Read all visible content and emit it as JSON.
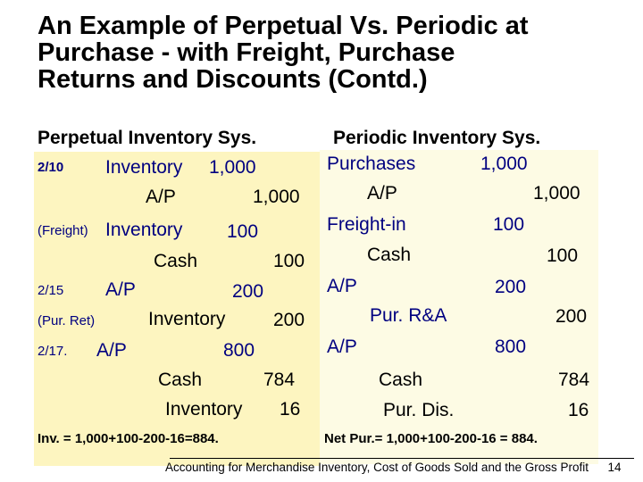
{
  "title": {
    "line1": "An Example of Perpetual Vs. Periodic at",
    "line2": "Purchase - with Freight, Purchase",
    "line3": "Returns and Discounts (Contd.)"
  },
  "perpetual": {
    "header": "Perpetual Inventory Sys.",
    "r1_date": "2/10",
    "r1_acct": "Inventory",
    "r1_amt": "1,000",
    "r2_acct": "A/P",
    "r2_amt": "1,000",
    "r3_note": "(Freight)",
    "r3_acct": "Inventory",
    "r3_amt": "100",
    "r4_acct": "Cash",
    "r4_amt": "100",
    "r5_date": "2/15",
    "r5_acct": "A/P",
    "r5_amt": "200",
    "r6_note": "(Pur. Ret)",
    "r6_acct": "Inventory",
    "r6_amt": "200",
    "r7_date": "2/17.",
    "r7_acct": "A/P",
    "r7_amt": "800",
    "r8_acct": "Cash",
    "r8_amt": "784",
    "r9_acct": "Inventory",
    "r9_amt": "16",
    "summary": "Inv. = 1,000+100-200-16=884."
  },
  "periodic": {
    "header": "Periodic Inventory Sys.",
    "r1_acct": "Purchases",
    "r1_amt": "1,000",
    "r2_acct": "A/P",
    "r2_amt": "1,000",
    "r3_acct": "Freight-in",
    "r3_amt": "100",
    "r4_acct": "Cash",
    "r4_amt": "100",
    "r5_acct": "A/P",
    "r5_amt": "200",
    "r6_acct": "Pur. R&A",
    "r6_amt": "200",
    "r7_acct": "A/P",
    "r7_amt": "800",
    "r8_acct": "Cash",
    "r8_amt": "784",
    "r9_acct": "Pur. Dis.",
    "r9_amt": "16",
    "summary": "Net Pur.= 1,000+100-200-16 = 884."
  },
  "footer": {
    "text": "Accounting for Merchandise Inventory, Cost of Goods Sold and the Gross Profit",
    "page": "14"
  }
}
